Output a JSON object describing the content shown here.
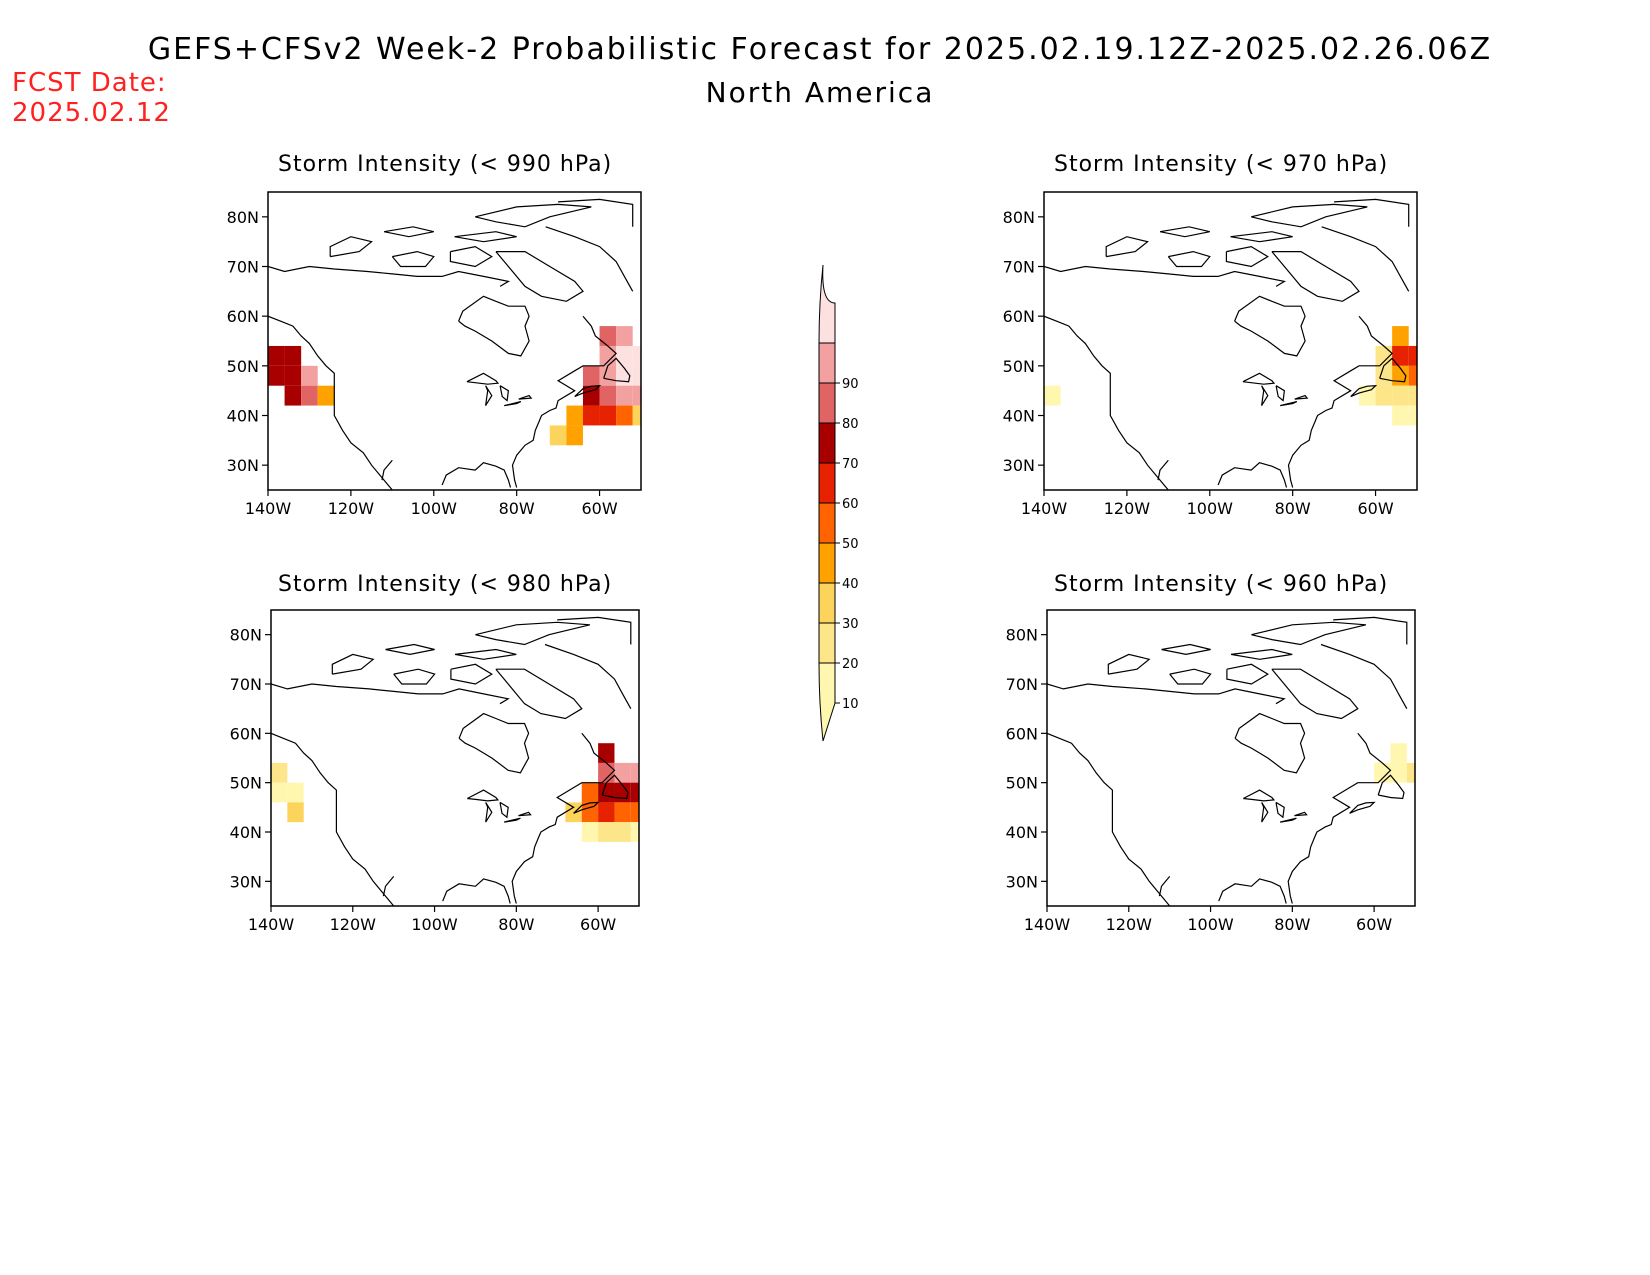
{
  "header": {
    "title": "GEFS+CFSv2 Week-2 Probabilistic Forecast for 2025.02.19.12Z-2025.02.26.06Z",
    "region": "North America",
    "fcst_label": "FCST Date:",
    "fcst_date": "2025.02.12"
  },
  "axes": {
    "lat_ticks": [
      "80N",
      "70N",
      "60N",
      "50N",
      "40N",
      "30N"
    ],
    "lat_values": [
      80,
      70,
      60,
      50,
      40,
      30
    ],
    "lon_ticks": [
      "140W",
      "120W",
      "100W",
      "80W",
      "60W"
    ],
    "lon_values": [
      -140,
      -120,
      -100,
      -80,
      -60
    ],
    "lon_range": [
      -140,
      -50
    ],
    "lat_range": [
      25,
      85
    ]
  },
  "colorbar": {
    "levels": [
      "10",
      "20",
      "30",
      "40",
      "50",
      "60",
      "70",
      "80",
      "90"
    ],
    "colors": [
      "#fff7b0",
      "#fde58a",
      "#fcd35b",
      "#ffa200",
      "#ff6400",
      "#e62200",
      "#a80000",
      "#e06464",
      "#f2a0a0",
      "#fde0e0"
    ]
  },
  "panels": [
    {
      "id": "lt990",
      "title": "Storm Intensity (< 990 hPa)",
      "cells": [
        {
          "lon": -140,
          "lat": 52,
          "lvl": 6
        },
        {
          "lon": -136,
          "lat": 52,
          "lvl": 6
        },
        {
          "lon": -140,
          "lat": 48,
          "lvl": 6
        },
        {
          "lon": -136,
          "lat": 48,
          "lvl": 6
        },
        {
          "lon": -132,
          "lat": 48,
          "lvl": 8
        },
        {
          "lon": -136,
          "lat": 44,
          "lvl": 6
        },
        {
          "lon": -132,
          "lat": 44,
          "lvl": 7
        },
        {
          "lon": -128,
          "lat": 44,
          "lvl": 3
        },
        {
          "lon": -60,
          "lat": 56,
          "lvl": 7
        },
        {
          "lon": -56,
          "lat": 56,
          "lvl": 8
        },
        {
          "lon": -60,
          "lat": 52,
          "lvl": 8
        },
        {
          "lon": -56,
          "lat": 52,
          "lvl": 9
        },
        {
          "lon": -52,
          "lat": 52,
          "lvl": 9
        },
        {
          "lon": -64,
          "lat": 48,
          "lvl": 7
        },
        {
          "lon": -60,
          "lat": 48,
          "lvl": 8
        },
        {
          "lon": -56,
          "lat": 48,
          "lvl": 9
        },
        {
          "lon": -52,
          "lat": 48,
          "lvl": 9
        },
        {
          "lon": -64,
          "lat": 44,
          "lvl": 6
        },
        {
          "lon": -60,
          "lat": 44,
          "lvl": 7
        },
        {
          "lon": -56,
          "lat": 44,
          "lvl": 8
        },
        {
          "lon": -52,
          "lat": 44,
          "lvl": 8
        },
        {
          "lon": -64,
          "lat": 40,
          "lvl": 5
        },
        {
          "lon": -60,
          "lat": 40,
          "lvl": 5
        },
        {
          "lon": -56,
          "lat": 40,
          "lvl": 4
        },
        {
          "lon": -52,
          "lat": 40,
          "lvl": 2
        },
        {
          "lon": -68,
          "lat": 40,
          "lvl": 3
        },
        {
          "lon": -72,
          "lat": 36,
          "lvl": 2
        },
        {
          "lon": -68,
          "lat": 36,
          "lvl": 3
        }
      ]
    },
    {
      "id": "lt970",
      "title": "Storm Intensity (< 970 hPa)",
      "cells": [
        {
          "lon": -140,
          "lat": 44,
          "lvl": 0
        },
        {
          "lon": -56,
          "lat": 56,
          "lvl": 3
        },
        {
          "lon": -60,
          "lat": 52,
          "lvl": 1
        },
        {
          "lon": -56,
          "lat": 52,
          "lvl": 5
        },
        {
          "lon": -52,
          "lat": 52,
          "lvl": 5
        },
        {
          "lon": -60,
          "lat": 48,
          "lvl": 1
        },
        {
          "lon": -56,
          "lat": 48,
          "lvl": 3
        },
        {
          "lon": -52,
          "lat": 48,
          "lvl": 4
        },
        {
          "lon": -64,
          "lat": 44,
          "lvl": 0
        },
        {
          "lon": -60,
          "lat": 44,
          "lvl": 1
        },
        {
          "lon": -56,
          "lat": 44,
          "lvl": 1
        },
        {
          "lon": -52,
          "lat": 44,
          "lvl": 1
        },
        {
          "lon": -56,
          "lat": 40,
          "lvl": 0
        },
        {
          "lon": -52,
          "lat": 40,
          "lvl": 0
        }
      ]
    },
    {
      "id": "lt980",
      "title": "Storm Intensity (< 980 hPa)",
      "cells": [
        {
          "lon": -140,
          "lat": 52,
          "lvl": 1
        },
        {
          "lon": -140,
          "lat": 48,
          "lvl": 0
        },
        {
          "lon": -136,
          "lat": 48,
          "lvl": 0
        },
        {
          "lon": -136,
          "lat": 44,
          "lvl": 2
        },
        {
          "lon": -60,
          "lat": 56,
          "lvl": 6
        },
        {
          "lon": -60,
          "lat": 52,
          "lvl": 7
        },
        {
          "lon": -56,
          "lat": 52,
          "lvl": 8
        },
        {
          "lon": -52,
          "lat": 52,
          "lvl": 8
        },
        {
          "lon": -64,
          "lat": 48,
          "lvl": 4
        },
        {
          "lon": -60,
          "lat": 48,
          "lvl": 6
        },
        {
          "lon": -56,
          "lat": 48,
          "lvl": 6
        },
        {
          "lon": -52,
          "lat": 48,
          "lvl": 6
        },
        {
          "lon": -68,
          "lat": 44,
          "lvl": 2
        },
        {
          "lon": -64,
          "lat": 44,
          "lvl": 4
        },
        {
          "lon": -60,
          "lat": 44,
          "lvl": 5
        },
        {
          "lon": -56,
          "lat": 44,
          "lvl": 4
        },
        {
          "lon": -52,
          "lat": 44,
          "lvl": 4
        },
        {
          "lon": -64,
          "lat": 40,
          "lvl": 0
        },
        {
          "lon": -60,
          "lat": 40,
          "lvl": 1
        },
        {
          "lon": -56,
          "lat": 40,
          "lvl": 1
        },
        {
          "lon": -52,
          "lat": 40,
          "lvl": 0
        }
      ]
    },
    {
      "id": "lt960",
      "title": "Storm Intensity (< 960 hPa)",
      "cells": [
        {
          "lon": -56,
          "lat": 56,
          "lvl": 0
        },
        {
          "lon": -56,
          "lat": 52,
          "lvl": 0
        },
        {
          "lon": -52,
          "lat": 52,
          "lvl": 1
        },
        {
          "lon": -60,
          "lat": 52,
          "lvl": 0
        }
      ]
    }
  ]
}
